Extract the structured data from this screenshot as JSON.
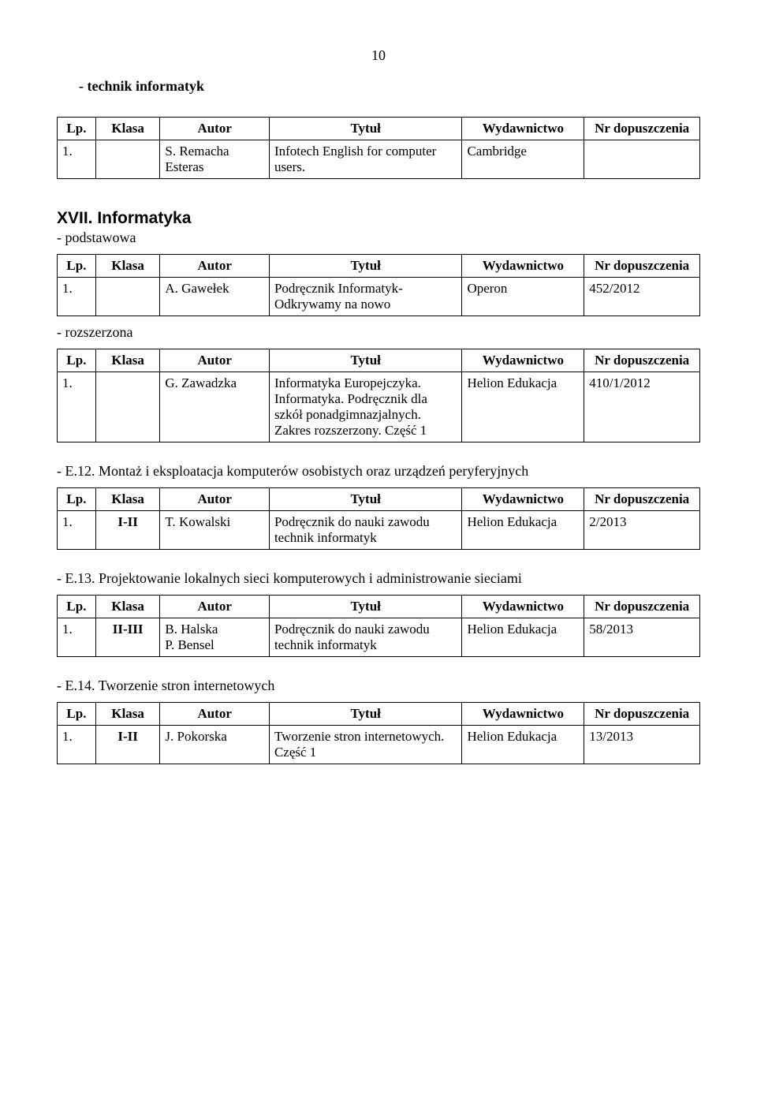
{
  "page_number": "10",
  "headers": {
    "lp": "Lp.",
    "klasa": "Klasa",
    "autor": "Autor",
    "tytul": "Tytuł",
    "wydawnictwo": "Wydawnictwo",
    "nr": "Nr dopuszczenia"
  },
  "sec_technik": {
    "title": "-   technik informatyk",
    "rows": [
      {
        "lp": "1.",
        "klasa": "",
        "autor": "S. Remacha Esteras",
        "tytul": "Infotech English for computer users.",
        "wyd": "Cambridge",
        "nr": ""
      }
    ]
  },
  "sec_xvii": {
    "roman": "XVII.   Informatyka",
    "sub_podst": "- podstawowa",
    "rows_podst": [
      {
        "lp": "1.",
        "klasa": "",
        "autor": "A. Gawełek",
        "tytul": "Podręcznik Informatyk- Odkrywamy na nowo",
        "wyd": "Operon",
        "nr": "452/2012"
      }
    ],
    "sub_roz": "- rozszerzona",
    "rows_roz": [
      {
        "lp": "1.",
        "klasa": "",
        "autor": "G. Zawadzka",
        "tytul": "Informatyka Europejczyka. Informatyka. Podręcznik dla szkół ponadgimnazjalnych. Zakres rozszerzony. Część 1",
        "wyd": "Helion Edukacja",
        "nr": "410/1/2012"
      }
    ]
  },
  "sec_e12": {
    "title": "- E.12. Montaż i eksploatacja komputerów osobistych oraz urządzeń peryferyjnych",
    "rows": [
      {
        "lp": "1.",
        "klasa": "I-II",
        "autor": "T. Kowalski",
        "tytul": "Podręcznik  do nauki zawodu technik informatyk",
        "wyd": "Helion Edukacja",
        "nr": "2/2013"
      }
    ]
  },
  "sec_e13": {
    "title": "- E.13. Projektowanie lokalnych sieci komputerowych i administrowanie sieciami",
    "rows": [
      {
        "lp": "1.",
        "klasa": "II-III",
        "autor": "B.   Halska\nP. Bensel",
        "tytul": "Podręcznik  do nauki zawodu technik informatyk",
        "wyd": "Helion Edukacja",
        "nr": "58/2013"
      }
    ]
  },
  "sec_e14": {
    "title": "- E.14. Tworzenie stron internetowych",
    "rows": [
      {
        "lp": "1.",
        "klasa": "I-II",
        "autor": "J. Pokorska",
        "tytul": "Tworzenie stron internetowych. Część 1",
        "wyd": "Helion Edukacja",
        "nr": "13/2013"
      }
    ]
  }
}
